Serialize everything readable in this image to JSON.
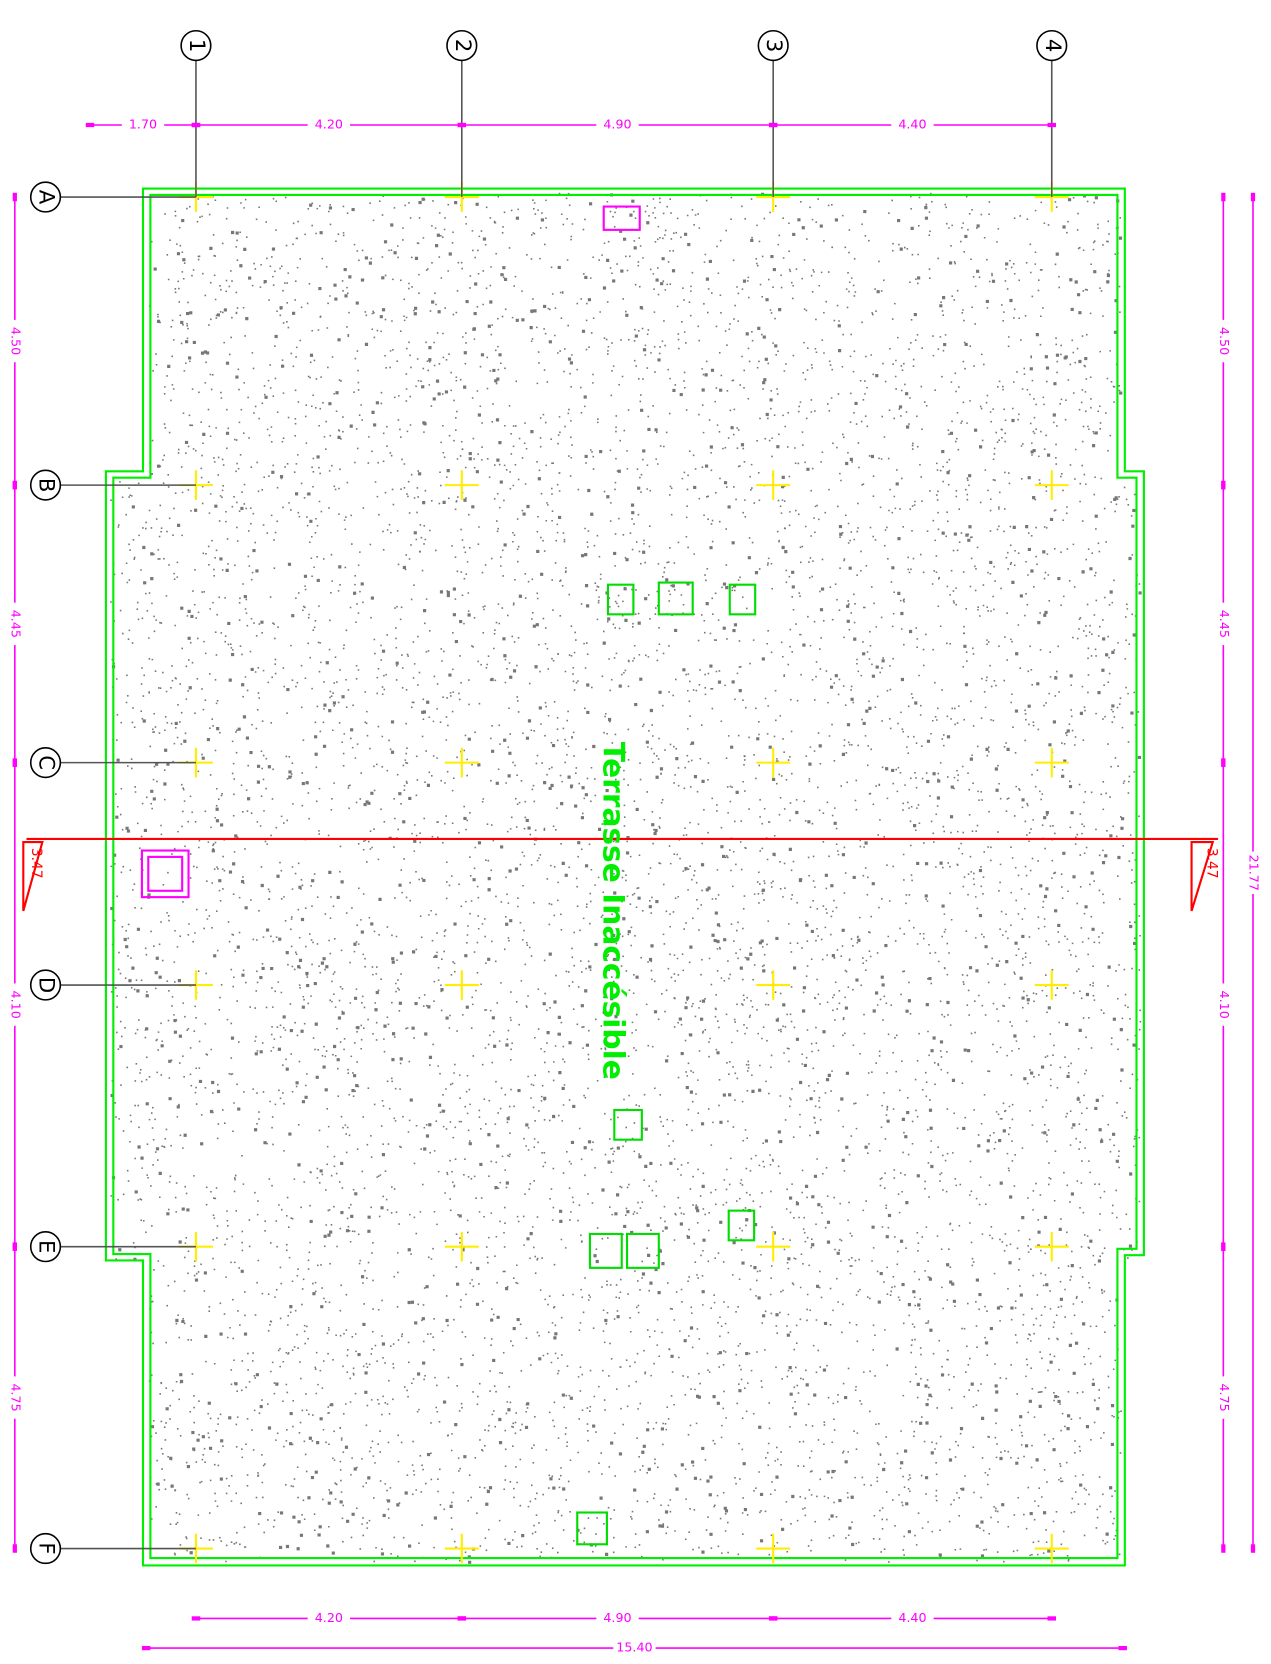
{
  "grid": {
    "columns": [
      "1",
      "2",
      "3",
      "4"
    ],
    "rows": [
      "A",
      "B",
      "C",
      "D",
      "E",
      "F"
    ]
  },
  "dimensions": {
    "top": [
      "1.70",
      "4.20",
      "4.90",
      "4.40"
    ],
    "bottom": [
      "4.20",
      "4.90",
      "4.40"
    ],
    "bottom_total": "15.40",
    "left": [
      "4.50",
      "4.45",
      "4.10",
      "4.75"
    ],
    "right": [
      "4.50",
      "4.45",
      "4.10",
      "4.75"
    ],
    "right_total": "21.77",
    "level_left": "3.47",
    "level_right": "3.47"
  },
  "label": "Terrasse Inaccésible"
}
